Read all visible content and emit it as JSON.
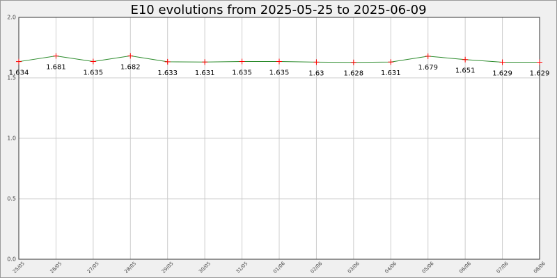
{
  "chart_data": {
    "type": "line",
    "title": "E10 evolutions from 2025-05-25 to 2025-06-09",
    "categories": [
      "25/05",
      "26/05",
      "27/05",
      "28/05",
      "29/05",
      "30/05",
      "31/05",
      "01/06",
      "02/06",
      "03/06",
      "04/06",
      "05/06",
      "06/06",
      "07/06",
      "08/06"
    ],
    "series": [
      {
        "name": "E10",
        "color": "#2a8a2a",
        "marker_color": "#ff0000",
        "values": [
          1.634,
          1.681,
          1.635,
          1.682,
          1.633,
          1.631,
          1.635,
          1.635,
          1.63,
          1.628,
          1.631,
          1.679,
          1.651,
          1.629,
          1.629
        ]
      }
    ],
    "ylim": [
      0,
      2
    ],
    "yticks": [
      {
        "value": 0,
        "label": "0.0"
      },
      0.5,
      {
        "value": 1,
        "label": "1.0"
      },
      1.5,
      {
        "value": 2,
        "label": "2.0"
      }
    ],
    "grid": true
  }
}
